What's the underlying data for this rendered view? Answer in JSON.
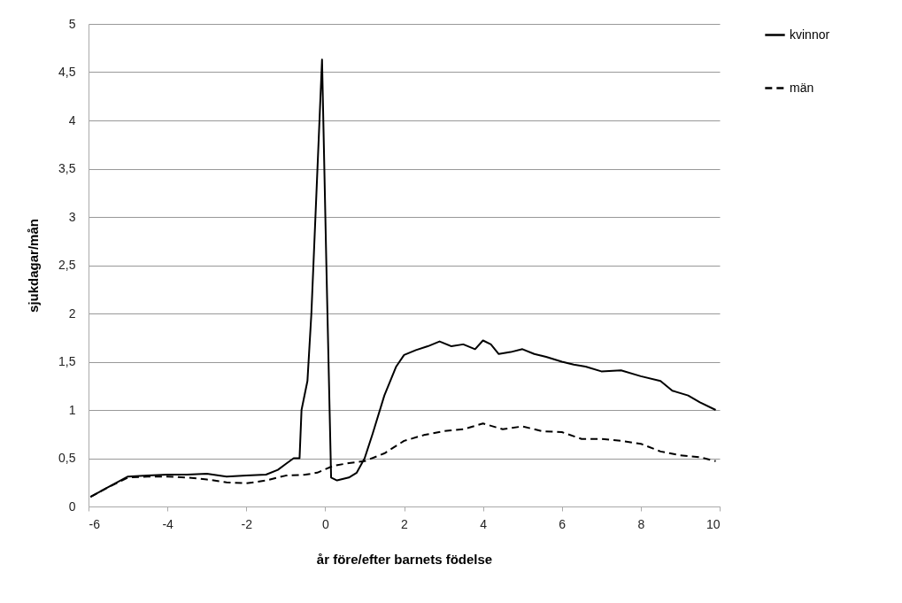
{
  "chart_data": {
    "type": "line",
    "xlabel": "år före/efter barnets födelse",
    "ylabel": "sjukdagar/mån",
    "xlim": [
      -6,
      10
    ],
    "xticks": [
      -6,
      -4,
      -2,
      0,
      2,
      4,
      6,
      8,
      10
    ],
    "ylim": [
      0,
      5
    ],
    "yticks": [
      0,
      {
        "value": 0.5,
        "label": "0,5"
      },
      1,
      {
        "value": 1.5,
        "label": "1,5"
      },
      2,
      {
        "value": 2.5,
        "label": "2,5"
      },
      3,
      {
        "value": 3.5,
        "label": "3,5"
      },
      4,
      {
        "value": 4.5,
        "label": "4,5"
      },
      5
    ],
    "grid": "y",
    "legend": "right",
    "marker": "none",
    "series": [
      {
        "name": "kvinnor",
        "color": "#000000",
        "line_style": "solid",
        "x": [
          -5.95,
          -5.5,
          -5.0,
          -4.5,
          -4,
          -3.5,
          -3,
          -2.5,
          -2,
          -1.5,
          -1.2,
          -1.0,
          -0.8,
          -0.65,
          -0.6,
          -0.45,
          -0.35,
          -0.08,
          0.03,
          0.15,
          0.3,
          0.6,
          0.8,
          1.0,
          1.2,
          1.5,
          1.8,
          2.0,
          2.3,
          2.6,
          2.9,
          3.2,
          3.5,
          3.8,
          4.0,
          4.2,
          4.4,
          4.7,
          5.0,
          5.3,
          5.6,
          6.0,
          6.3,
          6.6,
          7.0,
          7.5,
          8.0,
          8.5,
          8.8,
          9.2,
          9.5,
          9.9
        ],
        "values": [
          0.1,
          0.2,
          0.31,
          0.32,
          0.33,
          0.33,
          0.34,
          0.31,
          0.32,
          0.33,
          0.38,
          0.44,
          0.5,
          0.5,
          1.0,
          1.3,
          2.0,
          4.63,
          2.5,
          0.3,
          0.27,
          0.3,
          0.35,
          0.5,
          0.75,
          1.15,
          1.45,
          1.57,
          1.62,
          1.66,
          1.71,
          1.66,
          1.68,
          1.63,
          1.72,
          1.68,
          1.58,
          1.6,
          1.63,
          1.58,
          1.55,
          1.5,
          1.47,
          1.45,
          1.4,
          1.41,
          1.35,
          1.3,
          1.2,
          1.15,
          1.08,
          1.0
        ]
      },
      {
        "name": "män",
        "color": "#000000",
        "line_style": "dashed",
        "x": [
          -5.95,
          -5.5,
          -5,
          -4.5,
          -4,
          -3.5,
          -3,
          -2.5,
          -2,
          -1.5,
          -1,
          -0.5,
          -0.2,
          0.2,
          0.6,
          1.0,
          1.5,
          2.0,
          2.5,
          3.0,
          3.5,
          4.0,
          4.5,
          5.0,
          5.5,
          6.0,
          6.5,
          7.0,
          7.5,
          8.0,
          8.5,
          9.0,
          9.5,
          9.9
        ],
        "values": [
          0.1,
          0.2,
          0.3,
          0.31,
          0.31,
          0.3,
          0.28,
          0.25,
          0.24,
          0.27,
          0.32,
          0.33,
          0.35,
          0.42,
          0.45,
          0.47,
          0.55,
          0.68,
          0.74,
          0.78,
          0.8,
          0.86,
          0.8,
          0.83,
          0.78,
          0.77,
          0.7,
          0.7,
          0.68,
          0.65,
          0.57,
          0.53,
          0.51,
          0.47
        ]
      }
    ]
  }
}
